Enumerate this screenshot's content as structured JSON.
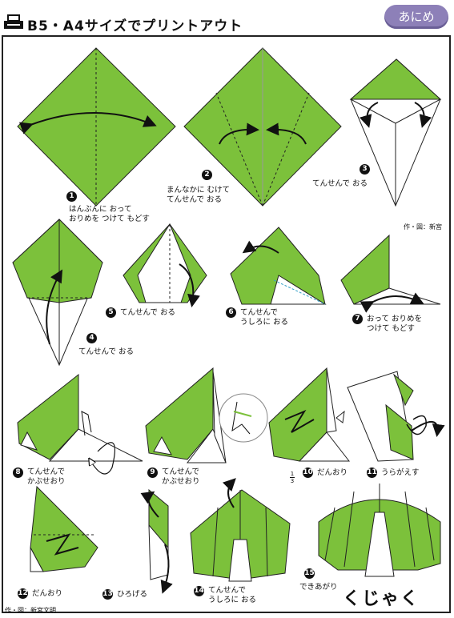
{
  "header": {
    "title": "B5・A4サイズでプリントアウト",
    "brand": "あにめ"
  },
  "credits": {
    "top": "作・図：新宮",
    "bottom": "作・図：新宮文明"
  },
  "steps": [
    {
      "num": "1",
      "text": "はんぶんに おって\nおりめを つけて もどす"
    },
    {
      "num": "2",
      "text": "まんなかに むけて\nてんせんで おる"
    },
    {
      "num": "3",
      "text": "てんせんで おる"
    },
    {
      "num": "4",
      "text": "てんせんで おる"
    },
    {
      "num": "5",
      "text": "てんせんで おる"
    },
    {
      "num": "6",
      "text": "てんせんで\nうしろに おる"
    },
    {
      "num": "7",
      "text": "おって おりめを\nつけて もどす"
    },
    {
      "num": "8",
      "text": "てんせんで\nかぶせおり"
    },
    {
      "num": "9",
      "text": "てんせんで\nかぶせおり"
    },
    {
      "num": "10",
      "text": "だんおり"
    },
    {
      "num": "11",
      "text": "うらがえす"
    },
    {
      "num": "12",
      "text": "だんおり"
    },
    {
      "num": "13",
      "text": "ひろげる"
    },
    {
      "num": "14",
      "text": "てんせんで\nうしろに おる"
    },
    {
      "num": "15",
      "text": "できあがり"
    }
  ],
  "final_name": "くじゃく",
  "fraction": {
    "top": "1",
    "bottom": "3"
  },
  "colors": {
    "paper_green": "#7cc13b",
    "paper_back": "#ffffff",
    "outline": "#222222",
    "brand_bg": "#8d80b8"
  }
}
